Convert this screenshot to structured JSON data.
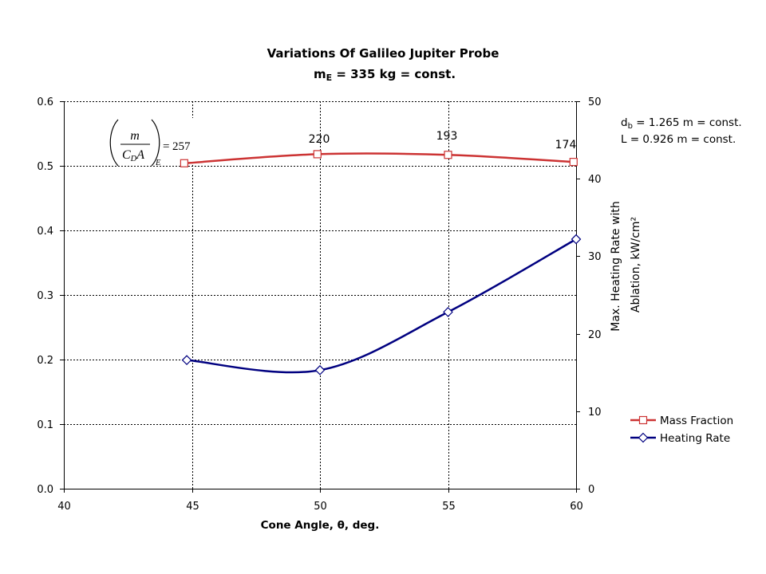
{
  "chart_data": {
    "type": "line",
    "title": "Variations Of Galileo Jupiter Probe",
    "subtitle": {
      "prefix": "m",
      "sub": "E",
      "suffix": " = 335 kg = const."
    },
    "xlabel": "Cone Angle, θ, deg.",
    "y2label": [
      "Max. Heating Rate with",
      "Ablation, kW/cm²"
    ],
    "xlim": [
      40,
      60
    ],
    "ylim": [
      0,
      0.6
    ],
    "y2lim": [
      0,
      50
    ],
    "xticks": [
      "40",
      "45",
      "50",
      "55",
      "60"
    ],
    "yticks": [
      "0.0",
      "0.1",
      "0.2",
      "0.3",
      "0.4",
      "0.5",
      "0.6"
    ],
    "y2ticks": [
      "0",
      "10",
      "20",
      "30",
      "40",
      "50"
    ],
    "grid": true,
    "legend": "right",
    "series": [
      {
        "name": "Mass Fraction",
        "axis": "left",
        "color": "#cc3333",
        "marker": "square",
        "x": [
          44.7,
          49.9,
          55.0,
          59.9
        ],
        "y": [
          0.504,
          0.518,
          0.517,
          0.506
        ],
        "data_labels": [
          "257",
          "220",
          "193",
          "174"
        ]
      },
      {
        "name": "Heating Rate",
        "axis": "right",
        "color": "#000080",
        "marker": "diamond",
        "x": [
          44.8,
          50.0,
          55.0,
          60.0
        ],
        "y": [
          16.6,
          15.3,
          22.8,
          32.2
        ]
      }
    ],
    "annotations": {
      "ballistic_coefficient": {
        "numerator": "m",
        "denominator": "C",
        "denominator_sub": "D",
        "denominator_suffix": "A",
        "subscript": "E",
        "equals": "="
      },
      "notes": {
        "db_prefix": "d",
        "db_sub": "b",
        "db_suffix": " = 1.265 m = const.",
        "length": "L = 0.926 m = const."
      }
    }
  }
}
